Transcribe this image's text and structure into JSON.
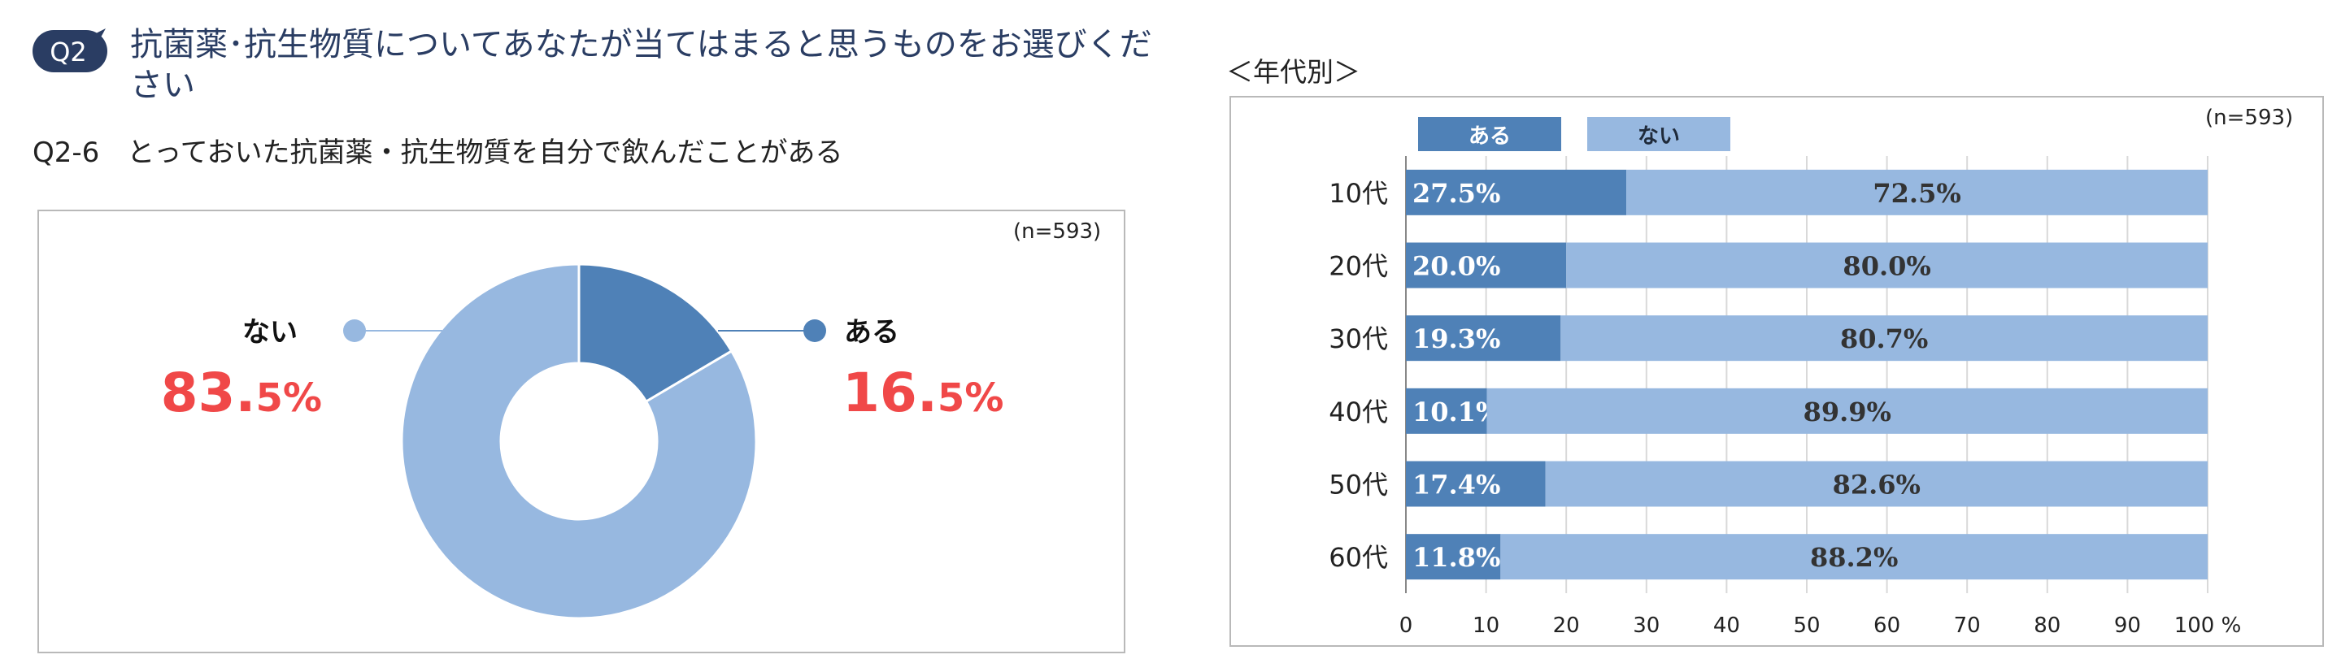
{
  "header": {
    "badge": "Q2",
    "title": "抗菌薬･抗生物質についてあなたが当てはまると思うものをお選びください"
  },
  "question": {
    "id": "Q2-6",
    "text": "とっておいた抗菌薬・抗生物質を自分で飲んだことがある"
  },
  "breakdown_label": "＜年代別＞",
  "colors": {
    "aru": "#4f81b7",
    "nai": "#97b8e0",
    "highlight": "#f04848",
    "frame": "#b9b9b9"
  },
  "chart_data": [
    {
      "type": "pie",
      "donut": true,
      "note": "(n=593)",
      "slices": [
        {
          "name": "ある",
          "value": 16.5,
          "label_int": "16.",
          "label_dec": "5%"
        },
        {
          "name": "ない",
          "value": 83.5,
          "label_int": "83.",
          "label_dec": "5%"
        }
      ]
    },
    {
      "type": "bar",
      "orientation": "horizontal",
      "stacked": true,
      "note": "(n=593)",
      "categories": [
        "10代",
        "20代",
        "30代",
        "40代",
        "50代",
        "60代"
      ],
      "series": [
        {
          "name": "ある",
          "values": [
            27.5,
            20.0,
            19.3,
            10.1,
            17.4,
            11.8
          ],
          "labels": [
            "27.5%",
            "20.0%",
            "19.3%",
            "10.1%",
            "17.4%",
            "11.8%"
          ]
        },
        {
          "name": "ない",
          "values": [
            72.5,
            80.0,
            80.7,
            89.9,
            82.6,
            88.2
          ],
          "labels": [
            "72.5%",
            "80.0%",
            "80.7%",
            "89.9%",
            "82.6%",
            "88.2%"
          ]
        }
      ],
      "xlim": [
        0,
        100
      ],
      "xticks": [
        "0",
        "10",
        "20",
        "30",
        "40",
        "50",
        "60",
        "70",
        "80",
        "90",
        "100 %"
      ],
      "legend_position": "top-left",
      "grid": true
    }
  ]
}
